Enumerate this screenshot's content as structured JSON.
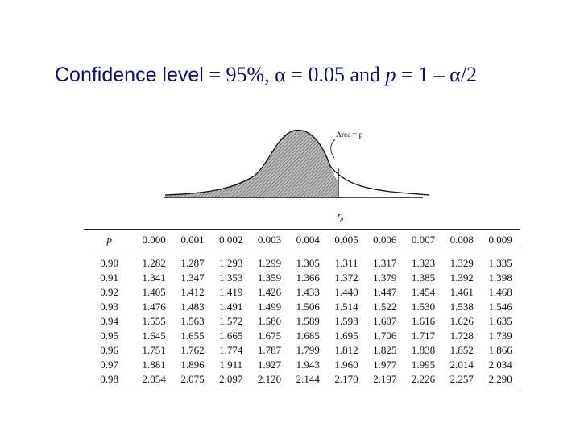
{
  "slide": {
    "title_part1": "Confidence level",
    "title_part2": " = 95%, ",
    "alpha_symbol": "α",
    "title_part3": " = 0.05 and ",
    "p_symbol": "p",
    "title_part4": " = 1 – ",
    "title_part5": "/2"
  },
  "figure": {
    "area_label": "Area = p",
    "axis_label": "z",
    "axis_subscript": "p"
  },
  "table": {
    "header": [
      "p",
      "0.000",
      "0.001",
      "0.002",
      "0.003",
      "0.004",
      "0.005",
      "0.006",
      "0.007",
      "0.008",
      "0.009"
    ],
    "rows": [
      [
        "0.90",
        "1.282",
        "1.287",
        "1.293",
        "1.299",
        "1.305",
        "1.311",
        "1.317",
        "1.323",
        "1.329",
        "1.335"
      ],
      [
        "0.91",
        "1.341",
        "1.347",
        "1.353",
        "1.359",
        "1.366",
        "1.372",
        "1.379",
        "1.385",
        "1.392",
        "1.398"
      ],
      [
        "0.92",
        "1.405",
        "1.412",
        "1.419",
        "1.426",
        "1.433",
        "1.440",
        "1.447",
        "1.454",
        "1.461",
        "1.468"
      ],
      [
        "0.93",
        "1.476",
        "1.483",
        "1.491",
        "1.499",
        "1.506",
        "1.514",
        "1.522",
        "1.530",
        "1.538",
        "1.546"
      ],
      [
        "0.94",
        "1.555",
        "1.563",
        "1.572",
        "1.580",
        "1.589",
        "1.598",
        "1.607",
        "1.616",
        "1.626",
        "1.635"
      ],
      [
        "0.95",
        "1.645",
        "1.655",
        "1.665",
        "1.675",
        "1.685",
        "1.695",
        "1.706",
        "1.717",
        "1.728",
        "1.739"
      ],
      [
        "0.96",
        "1.751",
        "1.762",
        "1.774",
        "1.787",
        "1.799",
        "1.812",
        "1.825",
        "1.838",
        "1.852",
        "1.866"
      ],
      [
        "0.97",
        "1.881",
        "1.896",
        "1.911",
        "1.927",
        "1.943",
        "1.960",
        "1.977",
        "1.995",
        "2.014",
        "2.034"
      ],
      [
        "0.98",
        "2.054",
        "2.075",
        "2.097",
        "2.120",
        "2.144",
        "2.170",
        "2.197",
        "2.226",
        "2.257",
        "2.290"
      ]
    ]
  }
}
